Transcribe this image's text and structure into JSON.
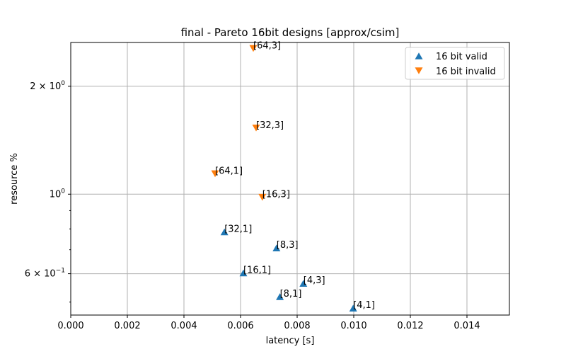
{
  "chart_data": {
    "type": "scatter",
    "title": "final - Pareto 16bit designs [approx/csim]",
    "xlabel": "latency [s]",
    "ylabel": "resource %",
    "xlim": [
      0,
      0.0155
    ],
    "ylim": [
      0.46,
      2.65
    ],
    "yscale": "log",
    "grid": true,
    "legend_position": "top-right",
    "x_ticks": [
      "0.000",
      "0.002",
      "0.004",
      "0.006",
      "0.008",
      "0.010",
      "0.012",
      "0.014"
    ],
    "y_ticks": [
      {
        "value": 0.6,
        "base": "6 × 10",
        "exp": "−1"
      },
      {
        "value": 1.0,
        "base": "10",
        "exp": "0"
      },
      {
        "value": 2.0,
        "base": "2 × 10",
        "exp": "0"
      }
    ],
    "y_minor_ticks": [
      0.5,
      0.7,
      0.8,
      0.9,
      3.0
    ],
    "series": [
      {
        "name": "16 bit valid",
        "color": "#1f77b4",
        "marker": "triangle-up",
        "points": [
          {
            "x": 0.00543,
            "y": 0.785,
            "label": "[32,1]"
          },
          {
            "x": 0.00727,
            "y": 0.708,
            "label": "[8,3]"
          },
          {
            "x": 0.0061,
            "y": 0.603,
            "label": "[16,1]"
          },
          {
            "x": 0.00822,
            "y": 0.564,
            "label": "[4,3]"
          },
          {
            "x": 0.00739,
            "y": 0.518,
            "label": "[8,1]"
          },
          {
            "x": 0.00998,
            "y": 0.481,
            "label": "[4,1]"
          }
        ]
      },
      {
        "name": "16 bit invalid",
        "color": "#ff7f0e",
        "marker": "triangle-down",
        "points": [
          {
            "x": 0.00645,
            "y": 2.55,
            "label": "[64,3]"
          },
          {
            "x": 0.00655,
            "y": 1.53,
            "label": "[32,3]"
          },
          {
            "x": 0.0051,
            "y": 1.14,
            "label": "[64,1]"
          },
          {
            "x": 0.00677,
            "y": 0.98,
            "label": "[16,3]"
          }
        ]
      }
    ]
  }
}
